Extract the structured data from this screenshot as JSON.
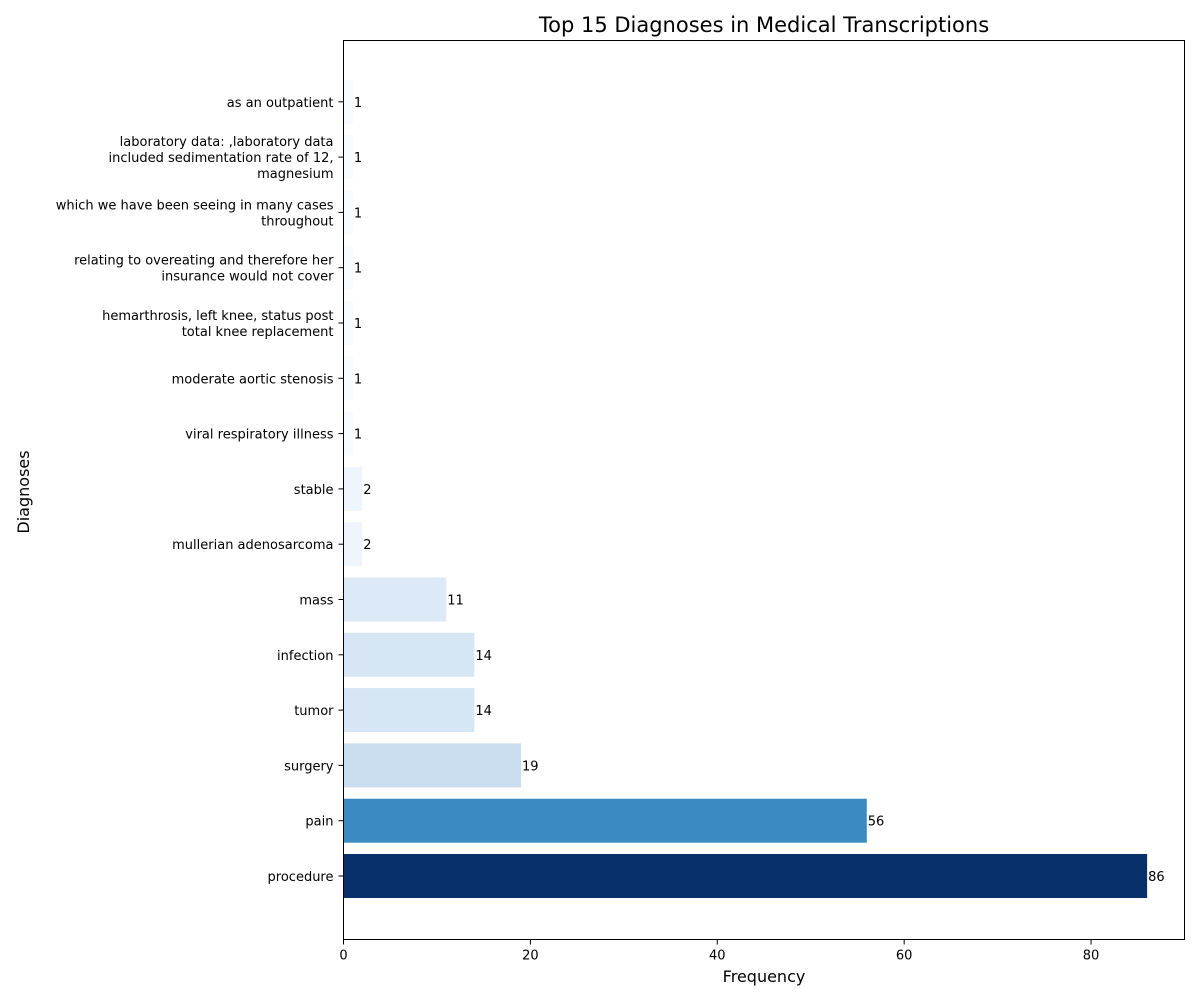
{
  "chart_data": {
    "type": "bar",
    "orientation": "horizontal",
    "title": "Top 15 Diagnoses in Medical Transcriptions",
    "xlabel": "Frequency",
    "ylabel": "Diagnoses",
    "xlim": [
      0,
      90
    ],
    "xticks": [
      "0",
      "20",
      "40",
      "60",
      "80"
    ],
    "grid": false,
    "legend": "none",
    "colormap": "Blues",
    "categories": [
      [
        "procedure"
      ],
      [
        "pain"
      ],
      [
        "surgery"
      ],
      [
        "tumor"
      ],
      [
        "infection"
      ],
      [
        "mass"
      ],
      [
        "mullerian adenosarcoma"
      ],
      [
        "stable"
      ],
      [
        "viral respiratory illness"
      ],
      [
        "moderate aortic stenosis"
      ],
      [
        "hemarthrosis, left knee, status post",
        "total knee replacement"
      ],
      [
        "relating to overeating and therefore her",
        "insurance would not cover"
      ],
      [
        "which we have been seeing in many cases",
        "throughout"
      ],
      [
        "laboratory data: ,laboratory data",
        "included sedimentation rate of 12,",
        "magnesium"
      ],
      [
        "as an outpatient"
      ]
    ],
    "values": [
      86,
      56,
      19,
      14,
      14,
      11,
      2,
      2,
      1,
      1,
      1,
      1,
      1,
      1,
      1
    ],
    "value_labels": [
      "86",
      "56",
      "19",
      "14",
      "14",
      "11",
      "2",
      "2",
      "1",
      "1",
      "1",
      "1",
      "1",
      "1",
      "1"
    ],
    "colors": [
      "#08306b",
      "#3b8bc2",
      "#cadef0",
      "#d6e6f4",
      "#d6e6f4",
      "#dce9f6",
      "#eef5fc",
      "#eef5fc",
      "#f7fbff",
      "#f7fbff",
      "#f7fbff",
      "#f7fbff",
      "#f7fbff",
      "#f7fbff",
      "#f7fbff"
    ]
  }
}
